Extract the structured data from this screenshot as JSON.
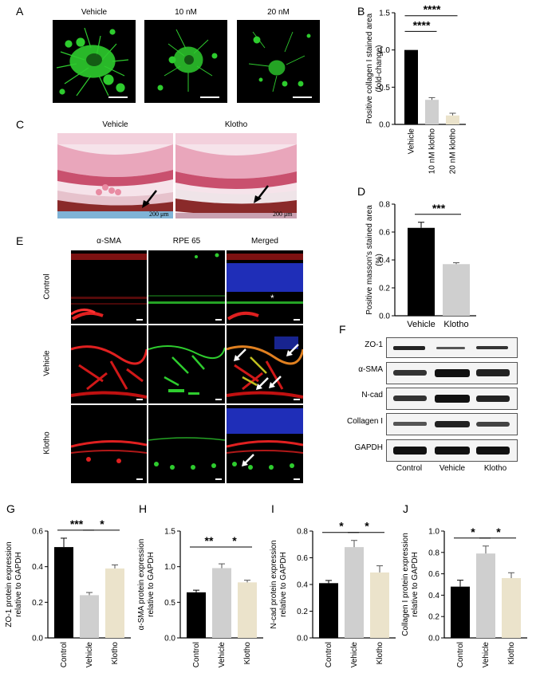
{
  "panels": {
    "A": {
      "letter": "A",
      "captions": [
        "Vehicle",
        "10 nM",
        "20 nM"
      ]
    },
    "B": {
      "letter": "B"
    },
    "C": {
      "letter": "C",
      "captions": [
        "Vehicle",
        "Klotho"
      ],
      "scale_label": "200 μm"
    },
    "D": {
      "letter": "D"
    },
    "E": {
      "letter": "E",
      "column_titles": [
        "α-SMA",
        "RPE 65",
        "Merged"
      ],
      "row_labels": [
        "Control",
        "Vehicle",
        "Klotho"
      ]
    },
    "F": {
      "letter": "F",
      "proteins": [
        "ZO-1",
        "α-SMA",
        "N-cad",
        "Collagen I",
        "GAPDH"
      ],
      "lanes": [
        "Control",
        "Vehicle",
        "Klotho"
      ]
    },
    "G": {
      "letter": "G"
    },
    "H": {
      "letter": "H"
    },
    "I": {
      "letter": "I"
    },
    "J": {
      "letter": "J"
    }
  },
  "colors": {
    "black_bar": "#000000",
    "gray_bar": "#cfcfcf",
    "cream_bar": "#ebe3cb",
    "fluor_green": "#2ecc2e",
    "fluor_red": "#e02020",
    "dapi_blue": "#2233cc"
  },
  "chart_data": [
    {
      "id": "B",
      "type": "bar",
      "categories": [
        "Vehicle",
        "10 nM klotho",
        "20 nM klotho"
      ],
      "values": [
        1.0,
        0.33,
        0.12
      ],
      "errors": [
        0,
        0.03,
        0.03
      ],
      "ylabel": "Positive collagen I stained area (fold-change)",
      "ylim": [
        0,
        1.5
      ],
      "yticks": [
        "0.0",
        "0.5",
        "1.0",
        "1.5"
      ],
      "significance": [
        {
          "from": 0,
          "to": 1,
          "label": "****"
        },
        {
          "from": 0,
          "to": 2,
          "label": "****"
        }
      ]
    },
    {
      "id": "D",
      "type": "bar",
      "categories": [
        "Vehicle",
        "Klotho"
      ],
      "values": [
        0.63,
        0.37
      ],
      "errors": [
        0.04,
        0.01
      ],
      "ylabel": "Positive masson's stained area (%)",
      "ylim": [
        0,
        0.8
      ],
      "yticks": [
        "0.0",
        "0.2",
        "0.4",
        "0.6",
        "0.8"
      ],
      "significance": [
        {
          "from": 0,
          "to": 1,
          "label": "***"
        }
      ]
    },
    {
      "id": "G",
      "type": "bar",
      "categories": [
        "Control",
        "Vehicle",
        "Klotho"
      ],
      "values": [
        0.51,
        0.24,
        0.39
      ],
      "errors": [
        0.05,
        0.015,
        0.02
      ],
      "ylabel": "ZO-1 protein expression relative to GAPDH",
      "ylim": [
        0,
        0.6
      ],
      "yticks": [
        "0.0",
        "0.2",
        "0.4",
        "0.6"
      ],
      "significance": [
        {
          "from": 0,
          "to": 1,
          "label": "***"
        },
        {
          "from": 1,
          "to": 2,
          "label": "*"
        }
      ]
    },
    {
      "id": "H",
      "type": "bar",
      "categories": [
        "Control",
        "Vehicle",
        "Klotho"
      ],
      "values": [
        0.64,
        0.98,
        0.78
      ],
      "errors": [
        0.03,
        0.06,
        0.03
      ],
      "ylabel": "α-SMA protein expression relative to GAPDH",
      "ylim": [
        0,
        1.5
      ],
      "yticks": [
        "0.0",
        "0.5",
        "1.0",
        "1.5"
      ],
      "significance": [
        {
          "from": 0,
          "to": 1,
          "label": "**"
        },
        {
          "from": 1,
          "to": 2,
          "label": "*"
        }
      ]
    },
    {
      "id": "I",
      "type": "bar",
      "categories": [
        "Control",
        "Vehicle",
        "Klotho"
      ],
      "values": [
        0.41,
        0.68,
        0.49
      ],
      "errors": [
        0.02,
        0.05,
        0.05
      ],
      "ylabel": "N-cad protein expression relative to GAPDH",
      "ylim": [
        0,
        0.8
      ],
      "yticks": [
        "0.0",
        "0.2",
        "0.4",
        "0.6",
        "0.8"
      ],
      "significance": [
        {
          "from": 0,
          "to": 1,
          "label": "*"
        },
        {
          "from": 1,
          "to": 2,
          "label": "*"
        }
      ]
    },
    {
      "id": "J",
      "type": "bar",
      "categories": [
        "Control",
        "Vehicle",
        "Klotho"
      ],
      "values": [
        0.48,
        0.79,
        0.56
      ],
      "errors": [
        0.06,
        0.07,
        0.05
      ],
      "ylabel": "Collagen I protein expression relative to GAPDH",
      "ylim": [
        0,
        1.0
      ],
      "yticks": [
        "0.0",
        "0.2",
        "0.4",
        "0.6",
        "0.8",
        "1.0"
      ],
      "significance": [
        {
          "from": 0,
          "to": 1,
          "label": "*"
        },
        {
          "from": 1,
          "to": 2,
          "label": "*"
        }
      ]
    }
  ]
}
